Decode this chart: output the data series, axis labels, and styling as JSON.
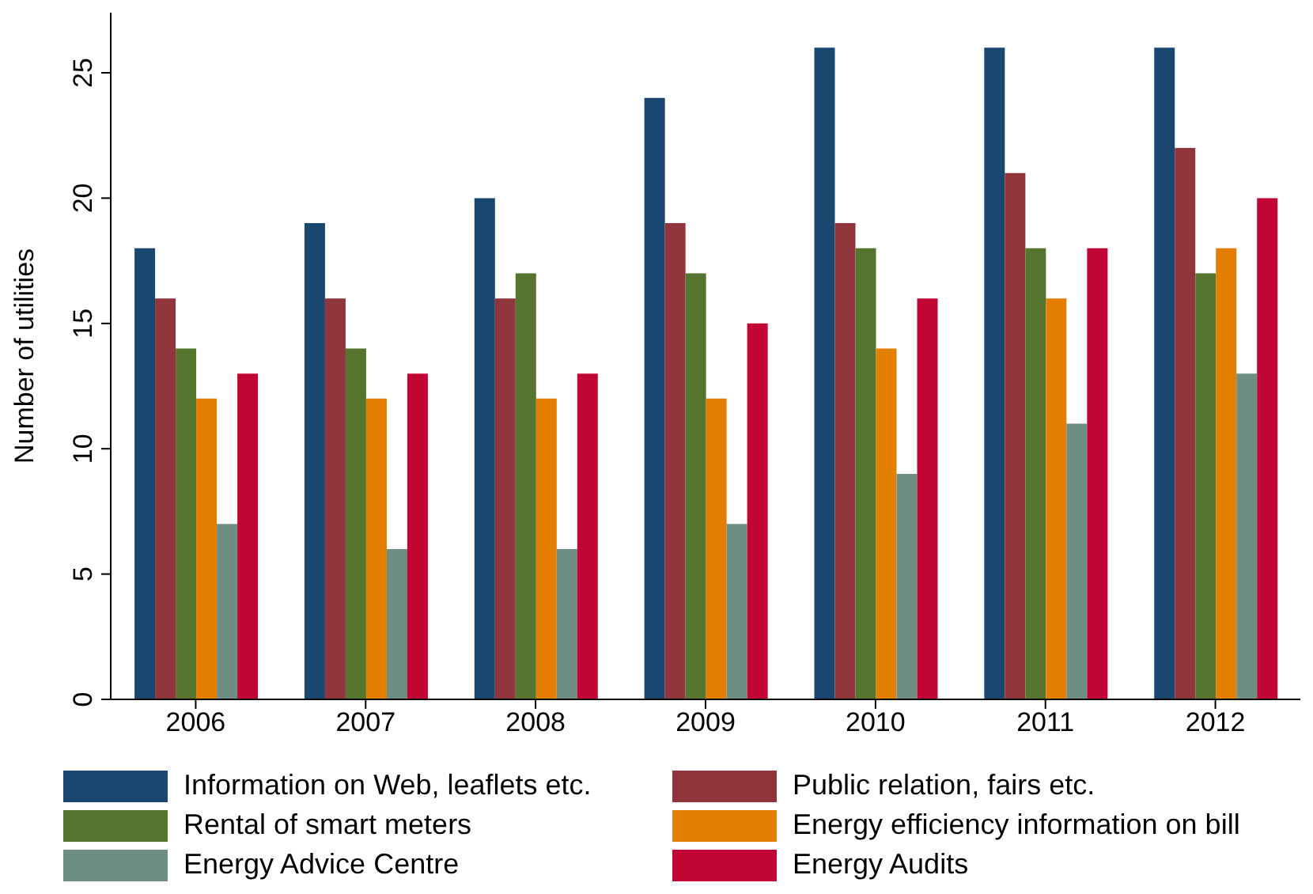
{
  "chart_data": {
    "type": "bar",
    "ylabel": "Number of utilities",
    "categories": [
      "2006",
      "2007",
      "2008",
      "2009",
      "2010",
      "2011",
      "2012"
    ],
    "series": [
      {
        "name": "Information on Web, leaflets etc.",
        "color": "#1a476f",
        "values": [
          18,
          19,
          20,
          24,
          26,
          26,
          26
        ]
      },
      {
        "name": "Public relation, fairs etc.",
        "color": "#90353b",
        "values": [
          16,
          16,
          16,
          19,
          19,
          21,
          22
        ]
      },
      {
        "name": "Rental of smart meters",
        "color": "#55752f",
        "values": [
          14,
          14,
          17,
          17,
          18,
          18,
          17
        ]
      },
      {
        "name": "Energy efficiency information on bill",
        "color": "#e37e00",
        "values": [
          12,
          12,
          12,
          12,
          14,
          16,
          18
        ]
      },
      {
        "name": "Energy Advice Centre",
        "color": "#6e8e84",
        "values": [
          7,
          6,
          6,
          7,
          9,
          11,
          13
        ]
      },
      {
        "name": "Energy Audits",
        "color": "#c10534",
        "values": [
          13,
          13,
          13,
          15,
          16,
          18,
          20
        ]
      }
    ],
    "ylim": [
      0,
      27.4
    ],
    "yticks": [
      0,
      5,
      10,
      15,
      20,
      25
    ],
    "grid": false,
    "legend": "bottom"
  }
}
